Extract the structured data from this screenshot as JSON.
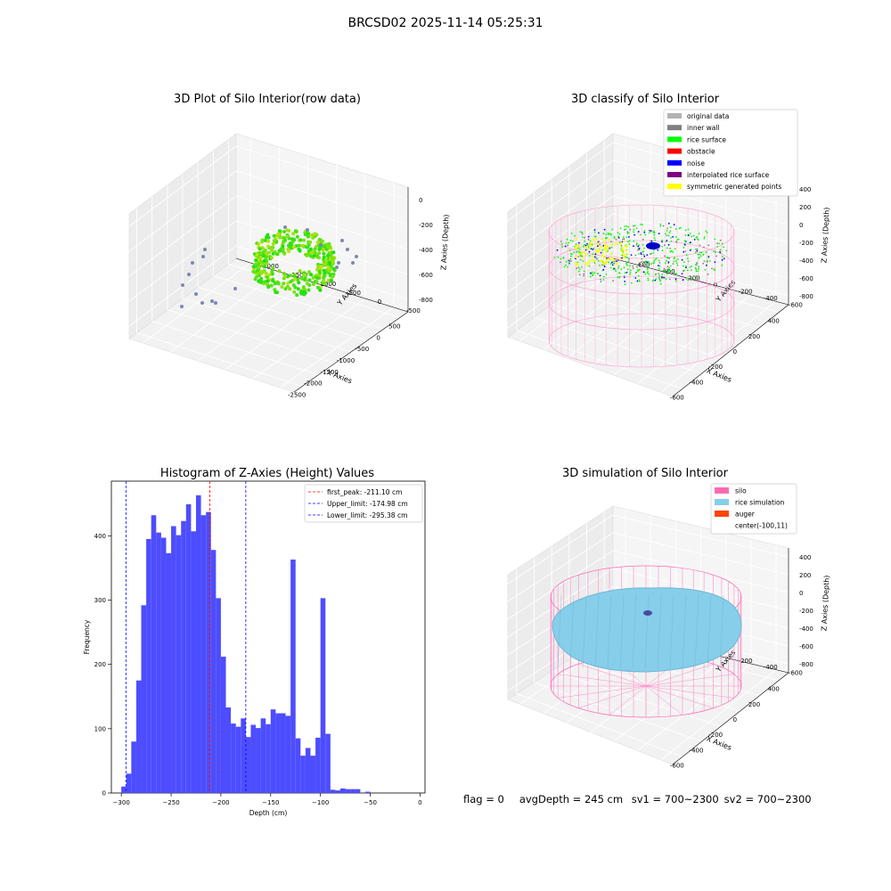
{
  "figure": {
    "title": "BRCSD02 2025-11-14 05:25:31",
    "footer": {
      "flag": "flag = 0",
      "avg_depth": "avgDepth = 245 cm",
      "sv1": "sv1 = 700~2300",
      "sv2": "sv2 = 700~2300"
    }
  },
  "panel1": {
    "title": "3D Plot of Silo Interior(row data)",
    "xlabel": "X Axies",
    "ylabel": "Y Axies",
    "zlabel": "Z Axies (Depth)",
    "xticks": [
      "-2500",
      "-2000",
      "-1500",
      "-1000",
      "-500",
      "0",
      "500"
    ],
    "yticks": [
      "-500",
      "0",
      "500",
      "1000",
      "1500",
      "2000"
    ],
    "zticks": [
      "0",
      "-200",
      "-400",
      "-600",
      "-800"
    ]
  },
  "panel2": {
    "title": "3D classify of Silo Interior",
    "xlabel": "X Axies",
    "ylabel": "Y Axies",
    "zlabel": "Z Axies (Depth)",
    "xticks": [
      "-600",
      "-400",
      "-200",
      "0",
      "200",
      "400"
    ],
    "yticks": [
      "-600",
      "-400",
      "-200",
      "0",
      "200",
      "400",
      "600"
    ],
    "zticks": [
      "400",
      "200",
      "0",
      "-200",
      "-400",
      "-600",
      "-800"
    ],
    "legend": [
      {
        "label": "original data",
        "color": "#b3b3b3"
      },
      {
        "label": "inner wall",
        "color": "#808080"
      },
      {
        "label": "rice surface",
        "color": "#00ff00"
      },
      {
        "label": "obstacle",
        "color": "#ff0000"
      },
      {
        "label": "noise",
        "color": "#0000ff"
      },
      {
        "label": "interpolated rice surface",
        "color": "#800080"
      },
      {
        "label": "symmetric generated points",
        "color": "#ffff00"
      }
    ]
  },
  "panel4": {
    "title": "3D simulation of Silo Interior",
    "xlabel": "X Axies",
    "ylabel": "Y Axies",
    "zlabel": "Z Axies (Depth)",
    "xticks": [
      "-600",
      "-400",
      "-200",
      "0",
      "200",
      "400"
    ],
    "yticks": [
      "-600",
      "-400",
      "-200",
      "0",
      "200",
      "400",
      "600"
    ],
    "zticks": [
      "400",
      "200",
      "0",
      "-200",
      "-400",
      "-600",
      "-800"
    ],
    "legend": [
      {
        "label": "silo",
        "color": "#ff69b4"
      },
      {
        "label": "rice simulation",
        "color": "#87ceeb"
      },
      {
        "label": "auger",
        "color": "#ff4500"
      },
      {
        "label": "center(-100,11)",
        "color": null
      }
    ]
  },
  "chart_data": {
    "type": "bar",
    "title": "Histogram of Z-Axies (Height) Values",
    "xlabel": "Depth (cm)",
    "ylabel": "Frequency",
    "xlim": [
      -310,
      5
    ],
    "ylim": [
      0,
      485
    ],
    "xticks": [
      -300,
      -250,
      -200,
      -150,
      -100,
      -50,
      0
    ],
    "yticks": [
      0,
      100,
      200,
      300,
      400
    ],
    "bin_start": -300,
    "bin_width": 5,
    "values": [
      10,
      30,
      80,
      175,
      292,
      395,
      432,
      405,
      397,
      373,
      415,
      401,
      423,
      449,
      407,
      463,
      432,
      437,
      378,
      303,
      212,
      133,
      108,
      103,
      116,
      87,
      106,
      101,
      116,
      107,
      130,
      124,
      124,
      120,
      363,
      85,
      58,
      70,
      58,
      86,
      303,
      92,
      5,
      4,
      7,
      6,
      6,
      6,
      0,
      2
    ],
    "bar_color": "#4d4dff",
    "reference_lines": [
      {
        "label": "first_peak: -211.10 cm",
        "value": -211.1,
        "color": "#ff0000"
      },
      {
        "label": "Upper_limit: -174.98 cm",
        "value": -174.98,
        "color": "#0000ff"
      },
      {
        "label": "Lower_limit: -295.38 cm",
        "value": -295.38,
        "color": "#0000ff"
      }
    ],
    "legend_position": "top-right"
  }
}
